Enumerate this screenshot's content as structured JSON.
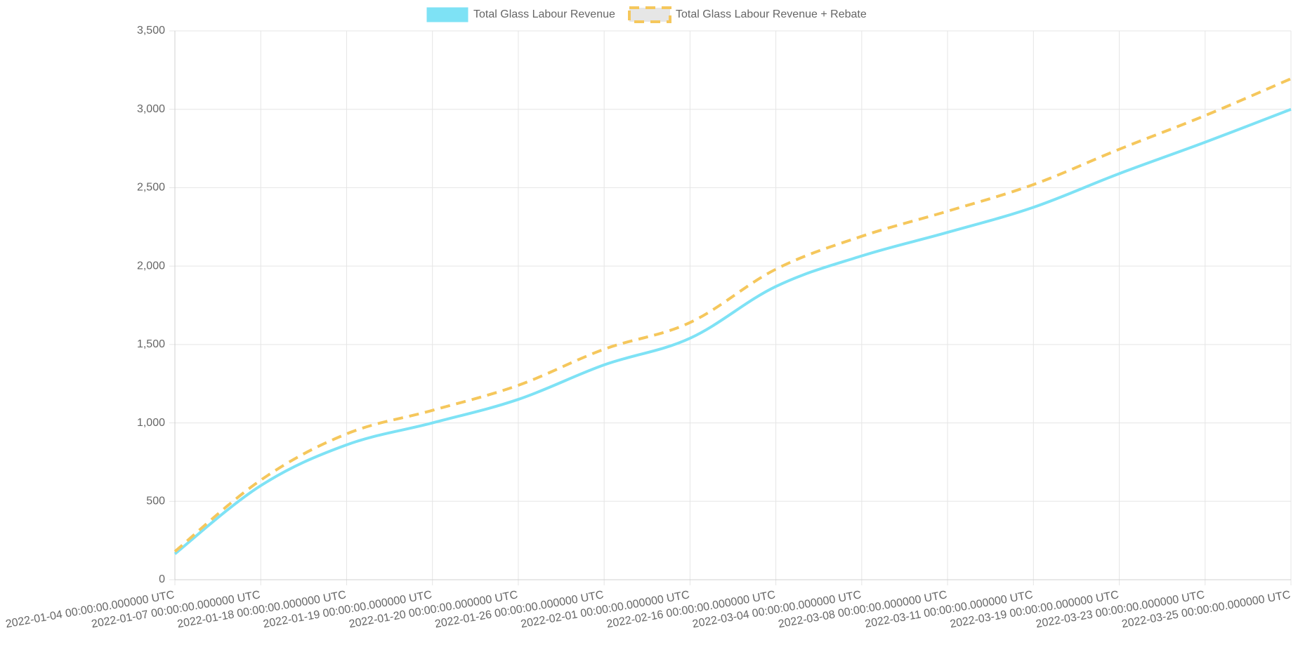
{
  "chart_data": {
    "type": "line",
    "title": "",
    "xlabel": "",
    "ylabel": "",
    "ylim": [
      0,
      3500
    ],
    "y_ticks": [
      "0",
      "500",
      "1,000",
      "1,500",
      "2,000",
      "2,500",
      "3,000",
      "3,500"
    ],
    "y_tick_values": [
      0,
      500,
      1000,
      1500,
      2000,
      2500,
      3000,
      3500
    ],
    "grid": true,
    "legend_position": "top-center",
    "x": [
      "2022-01-04 00:00:00.000000 UTC",
      "2022-01-07 00:00:00.000000 UTC",
      "2022-01-18 00:00:00.000000 UTC",
      "2022-01-19 00:00:00.000000 UTC",
      "2022-01-20 00:00:00.000000 UTC",
      "2022-01-26 00:00:00.000000 UTC",
      "2022-02-01 00:00:00.000000 UTC",
      "2022-02-16 00:00:00.000000 UTC",
      "2022-03-04 00:00:00.000000 UTC",
      "2022-03-08 00:00:00.000000 UTC",
      "2022-03-11 00:00:00.000000 UTC",
      "2022-03-19 00:00:00.000000 UTC",
      "2022-03-23 00:00:00.000000 UTC",
      "2022-03-25 00:00:00.000000 UTC"
    ],
    "series": [
      {
        "name": "Total Glass Labour Revenue",
        "color": "#7ee2f5",
        "dashed": false,
        "values": [
          165,
          600,
          860,
          1000,
          1150,
          1370,
          1540,
          1870,
          2065,
          2215,
          2375,
          2590,
          2790,
          3000
        ]
      },
      {
        "name": "Total Glass Labour Revenue + Rebate",
        "color": "#f5c75c",
        "dashed": true,
        "values": [
          180,
          635,
          930,
          1080,
          1240,
          1470,
          1640,
          1980,
          2190,
          2350,
          2520,
          2745,
          2960,
          3195
        ]
      }
    ]
  }
}
